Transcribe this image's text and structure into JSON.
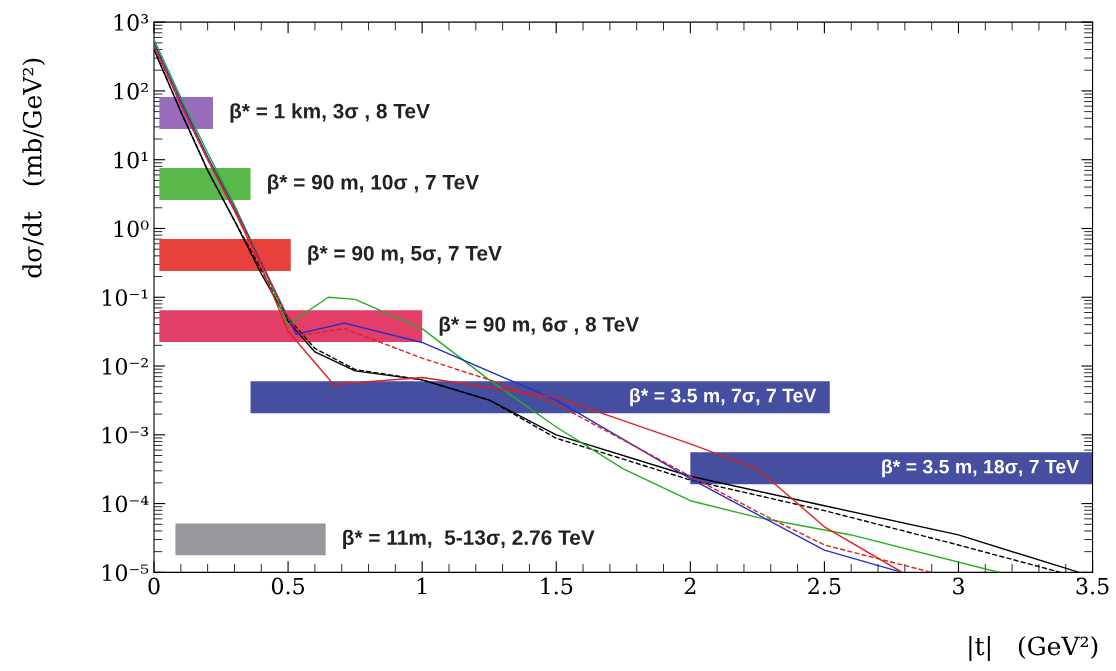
{
  "chart_data": {
    "type": "line",
    "xlabel": "|t|   (GeV²)",
    "ylabel": "dσ/dt   (mb/GeV²)",
    "log": "y",
    "grid": false,
    "legend": false,
    "xlim": [
      0,
      3.5
    ],
    "xticks": [
      0,
      0.5,
      1,
      1.5,
      2,
      2.5,
      3,
      3.5
    ],
    "ylim": [
      1e-05,
      1000
    ],
    "yticks": [
      {
        "value": 1e-05,
        "label": "10⁻⁵"
      },
      {
        "value": 0.0001,
        "label": "10⁻⁴"
      },
      {
        "value": 0.001,
        "label": "10⁻³"
      },
      {
        "value": 0.01,
        "label": "10⁻²"
      },
      {
        "value": 0.1,
        "label": "10⁻¹"
      },
      {
        "value": 1,
        "label": "10⁰"
      },
      {
        "value": 10,
        "label": "10¹"
      },
      {
        "value": 100,
        "label": "10²"
      },
      {
        "value": 1000,
        "label": "10³"
      }
    ],
    "series": [
      {
        "color": "#000000",
        "line_style": "solid",
        "x": [
          0,
          0.1,
          0.2,
          0.3,
          0.4,
          0.5,
          0.6,
          0.75,
          1,
          1.25,
          1.5,
          2,
          2.5,
          3,
          3.45
        ],
        "values": [
          400,
          50,
          7,
          1.3,
          0.22,
          0.045,
          0.016,
          0.0085,
          0.0063,
          0.0032,
          0.001,
          0.00025,
          9.3e-05,
          3.5e-05,
          1e-05
        ]
      },
      {
        "color": "#000000",
        "line_style": "dashed",
        "x": [
          0,
          0.1,
          0.2,
          0.3,
          0.4,
          0.5,
          0.6,
          0.75,
          1,
          1.25,
          1.5,
          2,
          2.5,
          3,
          3.38
        ],
        "values": [
          400,
          50,
          7,
          1.3,
          0.25,
          0.05,
          0.018,
          0.0089,
          0.0063,
          0.0032,
          0.00089,
          0.00022,
          7.9e-05,
          2.5e-05,
          1e-05
        ]
      },
      {
        "color": "#22b022",
        "line_style": "solid",
        "x": [
          0,
          0.1,
          0.2,
          0.3,
          0.4,
          0.5,
          0.65,
          0.75,
          1,
          1.25,
          1.5,
          1.75,
          2,
          2.25,
          2.6,
          3.15
        ],
        "values": [
          560,
          80,
          12.6,
          2.2,
          0.32,
          0.04,
          0.1,
          0.093,
          0.035,
          0.0063,
          0.0013,
          0.00032,
          0.00011,
          6.3e-05,
          3.5e-05,
          1e-05
        ]
      },
      {
        "color": "#2030d0",
        "line_style": "solid",
        "x": [
          0,
          0.1,
          0.2,
          0.3,
          0.4,
          0.5,
          0.53,
          0.71,
          1,
          1.5,
          2,
          2.5,
          2.79
        ],
        "values": [
          500,
          71,
          11,
          2,
          0.32,
          0.05,
          0.029,
          0.042,
          0.022,
          0.0032,
          0.00023,
          2.1e-05,
          1e-05
        ]
      },
      {
        "color": "#e02020",
        "line_style": "solid",
        "x": [
          0,
          0.1,
          0.2,
          0.3,
          0.4,
          0.5,
          0.67,
          1,
          1.5,
          2,
          2.25,
          2.5,
          2.79
        ],
        "values": [
          450,
          63,
          10,
          1.8,
          0.28,
          0.032,
          0.0054,
          0.0068,
          0.0035,
          0.00074,
          0.00032,
          4.6e-05,
          1e-05
        ]
      },
      {
        "color": "#e02020",
        "line_style": "dashed",
        "x": [
          0,
          0.1,
          0.2,
          0.3,
          0.4,
          0.5,
          0.55,
          0.71,
          1,
          1.25,
          1.5,
          2,
          2.25,
          2.5,
          2.9
        ],
        "values": [
          450,
          63,
          10,
          1.9,
          0.32,
          0.05,
          0.028,
          0.035,
          0.013,
          0.0063,
          0.0028,
          0.00025,
          7.6e-05,
          2.5e-05,
          1e-05
        ]
      }
    ],
    "bands": [
      {
        "axis": "x",
        "from": 0.02,
        "to": 0.22,
        "label": "β* = 1 km, 3σ , 8 TeV",
        "color": "#9a6cbc"
      },
      {
        "axis": "x",
        "from": 0.02,
        "to": 0.36,
        "label": "β* = 90 m, 10σ , 7 TeV",
        "color": "#58b848"
      },
      {
        "axis": "x",
        "from": 0.02,
        "to": 0.51,
        "label": "β* = 90 m, 5σ, 7 TeV",
        "color": "#e8413c"
      },
      {
        "axis": "x",
        "from": 0.02,
        "to": 1.0,
        "label": "β* = 90 m, 6σ , 8 TeV",
        "color": "#e33d6a"
      },
      {
        "axis": "x",
        "from": 0.36,
        "to": 2.52,
        "label": "β* = 3.5 m, 7σ, 7 TeV",
        "color": "#464ea0"
      },
      {
        "axis": "x",
        "from": 2.0,
        "to": 3.5,
        "label": "β* = 3.5 m, 18σ, 7 TeV",
        "color": "#464ea0"
      },
      {
        "axis": "x",
        "from": 0.08,
        "to": 0.64,
        "label": "β* = 11m,  5-13σ, 2.76 TeV",
        "color": "#97979c"
      }
    ]
  }
}
